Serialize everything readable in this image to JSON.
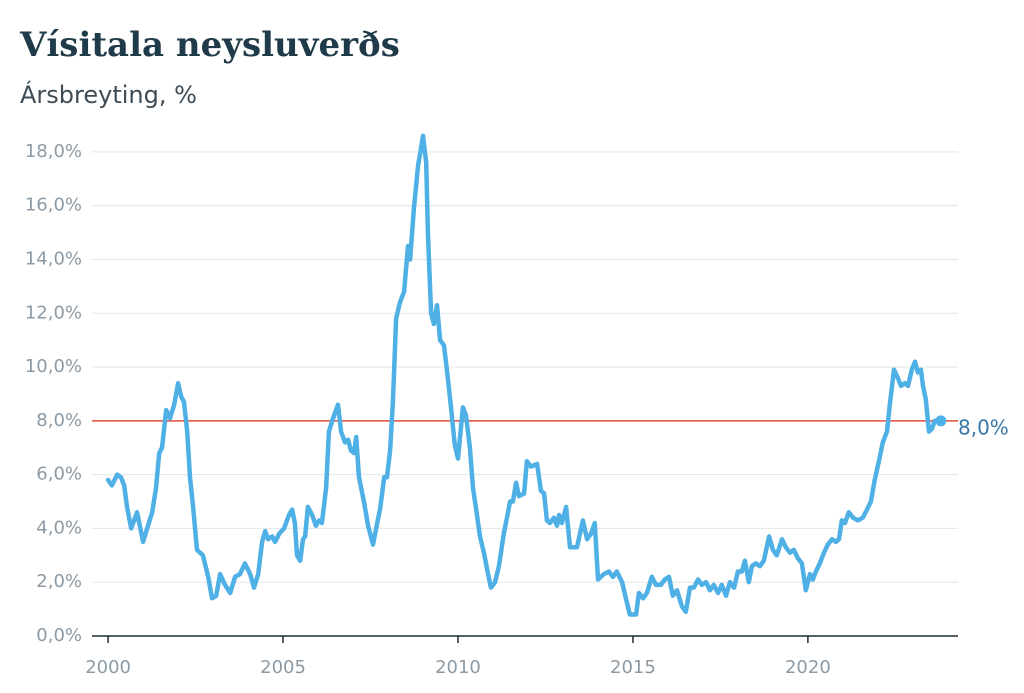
{
  "chart_data": {
    "type": "line",
    "title": "Vísitala neysluverðs",
    "subtitle": "Ársbreyting, %",
    "color": "#4fb0e6",
    "grid": true,
    "xlim": [
      1999.54,
      2024.29
    ],
    "ylim": [
      0,
      19
    ],
    "xticks": [
      2000,
      2005,
      2010,
      2015,
      2020
    ],
    "yticks": [
      {
        "value": 0,
        "label": "0,0%"
      },
      {
        "value": 2,
        "label": "2,0%"
      },
      {
        "value": 4,
        "label": "4,0%"
      },
      {
        "value": 6,
        "label": "6,0%"
      },
      {
        "value": 8,
        "label": "8,0%"
      },
      {
        "value": 10,
        "label": "10,0%"
      },
      {
        "value": 12,
        "label": "12,0%"
      },
      {
        "value": 14,
        "label": "14,0%"
      },
      {
        "value": 16,
        "label": "16,0%"
      },
      {
        "value": 18,
        "label": "18,0%"
      }
    ],
    "reference": {
      "value": 8,
      "label": "8,0%",
      "color": "#e04e39"
    },
    "x": [
      2000.0,
      2000.11,
      2000.26,
      2000.37,
      2000.46,
      2000.54,
      2000.66,
      2000.83,
      2001.0,
      2001.14,
      2001.26,
      2001.37,
      2001.46,
      2001.54,
      2001.66,
      2001.77,
      2001.89,
      2002.0,
      2002.09,
      2002.17,
      2002.26,
      2002.34,
      2002.43,
      2002.54,
      2002.71,
      2002.86,
      2002.97,
      2003.09,
      2003.2,
      2003.34,
      2003.49,
      2003.63,
      2003.77,
      2003.91,
      2004.06,
      2004.17,
      2004.29,
      2004.4,
      2004.49,
      2004.57,
      2004.69,
      2004.77,
      2004.89,
      2005.03,
      2005.17,
      2005.26,
      2005.34,
      2005.4,
      2005.49,
      2005.57,
      2005.63,
      2005.71,
      2005.83,
      2005.94,
      2006.03,
      2006.11,
      2006.23,
      2006.31,
      2006.43,
      2006.57,
      2006.66,
      2006.77,
      2006.86,
      2006.94,
      2007.03,
      2007.09,
      2007.17,
      2007.31,
      2007.43,
      2007.57,
      2007.69,
      2007.77,
      2007.89,
      2007.97,
      2008.06,
      2008.14,
      2008.23,
      2008.34,
      2008.46,
      2008.57,
      2008.63,
      2008.74,
      2008.86,
      2008.94,
      2009.0,
      2009.09,
      2009.14,
      2009.23,
      2009.31,
      2009.4,
      2009.49,
      2009.6,
      2009.71,
      2009.8,
      2009.91,
      2010.0,
      2010.14,
      2010.23,
      2010.34,
      2010.43,
      2010.51,
      2010.63,
      2010.74,
      2010.83,
      2010.94,
      2011.06,
      2011.17,
      2011.31,
      2011.49,
      2011.57,
      2011.66,
      2011.74,
      2011.89,
      2011.97,
      2012.09,
      2012.26,
      2012.37,
      2012.46,
      2012.54,
      2012.63,
      2012.74,
      2012.83,
      2012.89,
      2012.97,
      2013.09,
      2013.2,
      2013.4,
      2013.57,
      2013.69,
      2013.8,
      2013.91,
      2014.0,
      2014.17,
      2014.31,
      2014.43,
      2014.54,
      2014.69,
      2014.8,
      2014.91,
      2015.09,
      2015.17,
      2015.29,
      2015.4,
      2015.54,
      2015.66,
      2015.8,
      2015.91,
      2016.03,
      2016.14,
      2016.26,
      2016.4,
      2016.51,
      2016.63,
      2016.74,
      2016.86,
      2016.97,
      2017.09,
      2017.2,
      2017.31,
      2017.43,
      2017.54,
      2017.66,
      2017.77,
      2017.89,
      2018.0,
      2018.11,
      2018.2,
      2018.31,
      2018.4,
      2018.51,
      2018.63,
      2018.74,
      2018.89,
      2019.0,
      2019.11,
      2019.26,
      2019.37,
      2019.49,
      2019.6,
      2019.71,
      2019.83,
      2019.94,
      2020.06,
      2020.14,
      2020.23,
      2020.34,
      2020.46,
      2020.57,
      2020.69,
      2020.8,
      2020.89,
      2020.97,
      2021.06,
      2021.17,
      2021.29,
      2021.43,
      2021.57,
      2021.69,
      2021.8,
      2021.91,
      2022.03,
      2022.14,
      2022.26,
      2022.34,
      2022.46,
      2022.57,
      2022.66,
      2022.77,
      2022.86,
      2022.97,
      2023.06,
      2023.14,
      2023.23,
      2023.29,
      2023.37,
      2023.46,
      2023.54,
      2023.63,
      2023.71,
      2023.8
    ],
    "values": [
      5.8,
      5.6,
      6.0,
      5.9,
      5.6,
      4.8,
      4.0,
      4.6,
      3.5,
      4.1,
      4.6,
      5.5,
      6.8,
      7.0,
      8.4,
      8.1,
      8.6,
      9.4,
      8.9,
      8.7,
      7.6,
      5.9,
      4.8,
      3.2,
      3.0,
      2.2,
      1.4,
      1.5,
      2.3,
      1.9,
      1.6,
      2.2,
      2.3,
      2.7,
      2.3,
      1.8,
      2.3,
      3.5,
      3.9,
      3.6,
      3.7,
      3.5,
      3.8,
      4.0,
      4.5,
      4.7,
      4.2,
      3.0,
      2.8,
      3.6,
      3.7,
      4.8,
      4.5,
      4.1,
      4.3,
      4.2,
      5.5,
      7.6,
      8.1,
      8.6,
      7.6,
      7.2,
      7.3,
      6.9,
      6.8,
      7.4,
      5.9,
      5.0,
      4.1,
      3.4,
      4.2,
      4.7,
      5.9,
      5.9,
      6.9,
      8.7,
      11.8,
      12.4,
      12.8,
      14.5,
      14.0,
      15.9,
      17.5,
      18.1,
      18.6,
      17.6,
      15.0,
      12.0,
      11.6,
      12.3,
      11.0,
      10.8,
      9.6,
      8.5,
      7.1,
      6.6,
      8.5,
      8.2,
      7.0,
      5.5,
      4.8,
      3.7,
      3.1,
      2.5,
      1.8,
      2.0,
      2.6,
      3.8,
      5.0,
      5.0,
      5.7,
      5.2,
      5.3,
      6.5,
      6.3,
      6.4,
      5.4,
      5.3,
      4.3,
      4.2,
      4.4,
      4.1,
      4.5,
      4.2,
      4.8,
      3.3,
      3.3,
      4.3,
      3.6,
      3.8,
      4.2,
      2.1,
      2.3,
      2.4,
      2.2,
      2.4,
      2.0,
      1.4,
      0.8,
      0.8,
      1.6,
      1.4,
      1.6,
      2.2,
      1.9,
      1.9,
      2.1,
      2.2,
      1.5,
      1.7,
      1.1,
      0.9,
      1.8,
      1.8,
      2.1,
      1.9,
      2.0,
      1.7,
      1.9,
      1.6,
      1.9,
      1.5,
      2.0,
      1.8,
      2.4,
      2.4,
      2.8,
      2.0,
      2.6,
      2.7,
      2.6,
      2.8,
      3.7,
      3.2,
      3.0,
      3.6,
      3.3,
      3.1,
      3.2,
      2.9,
      2.7,
      1.7,
      2.3,
      2.1,
      2.4,
      2.7,
      3.1,
      3.4,
      3.6,
      3.5,
      3.6,
      4.3,
      4.2,
      4.6,
      4.4,
      4.3,
      4.4,
      4.7,
      5.0,
      5.8,
      6.5,
      7.2,
      7.6,
      8.6,
      9.9,
      9.6,
      9.3,
      9.4,
      9.3,
      9.9,
      10.2,
      9.8,
      9.9,
      9.3,
      8.8,
      7.6,
      7.7,
      8.0,
      8.0,
      8.0
    ]
  }
}
